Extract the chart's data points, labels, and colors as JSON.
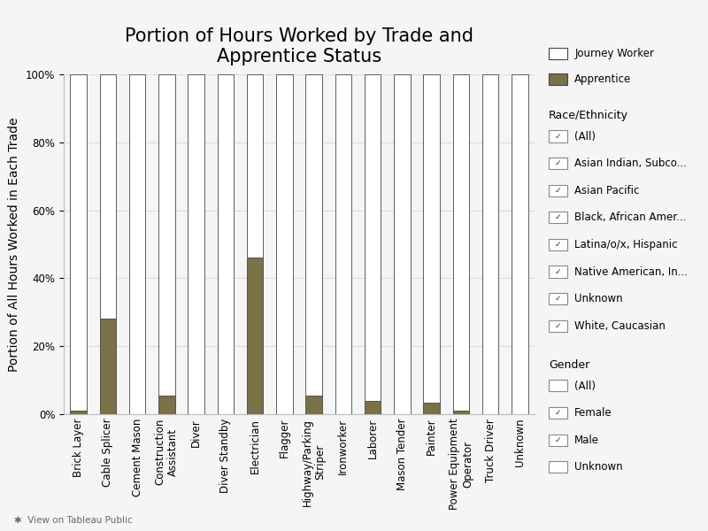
{
  "title": "Portion of Hours Worked by Trade and\nApprentice Status",
  "ylabel": "Portion of All Hours Worked in Each Trade",
  "categories": [
    "Brick Layer",
    "Cable Splicer",
    "Cement Mason",
    "Construction\nAssistant",
    "Diver",
    "Diver Standby",
    "Electrician",
    "Flagger",
    "Highway/Parking\nStriper",
    "Ironworker",
    "Laborer",
    "Mason Tender",
    "Painter",
    "Power Equipment\nOperator",
    "Truck Driver",
    "Unknown"
  ],
  "apprentice_values": [
    0.01,
    0.28,
    0.0,
    0.055,
    0.0,
    0.0,
    0.46,
    0.0,
    0.055,
    0.0,
    0.04,
    0.0,
    0.035,
    0.01,
    0.0,
    0.0
  ],
  "journey_values": [
    0.99,
    0.72,
    1.0,
    0.945,
    1.0,
    1.0,
    0.54,
    1.0,
    0.945,
    1.0,
    0.96,
    1.0,
    0.965,
    0.99,
    1.0,
    1.0
  ],
  "apprentice_color": "#7a7146",
  "journey_color": "#ffffff",
  "bar_edge_color": "#444444",
  "background_color": "#f5f5f5",
  "grid_color": "#dddddd",
  "legend_labels": [
    "Journey Worker",
    "Apprentice"
  ],
  "yticks": [
    0.0,
    0.2,
    0.4,
    0.6,
    0.8,
    1.0
  ],
  "ytick_labels": [
    "0%",
    "20%",
    "40%",
    "60%",
    "80%",
    "100%"
  ],
  "title_fontsize": 15,
  "axis_label_fontsize": 10,
  "tick_fontsize": 8.5,
  "legend_fontsize": 9,
  "bar_width": 0.55,
  "figsize": [
    8.0,
    6.0
  ],
  "dpi": 100,
  "sidebar_title1": "Race/Ethnicity",
  "sidebar_items1": [
    "(All)",
    "Asian Indian, Subco...",
    "Asian Pacific",
    "Black, African Amer...",
    "Latina/o/x, Hispanic",
    "Native American, In...",
    "Unknown",
    "White, Caucasian"
  ],
  "sidebar_checked1": [
    true,
    true,
    true,
    true,
    true,
    true,
    true,
    true
  ],
  "sidebar_title2": "Gender",
  "sidebar_items2": [
    "(All)",
    "Female",
    "Male",
    "Unknown"
  ],
  "sidebar_checked2": [
    false,
    true,
    true,
    false
  ],
  "footer_text": "✱  View on Tableau Public"
}
